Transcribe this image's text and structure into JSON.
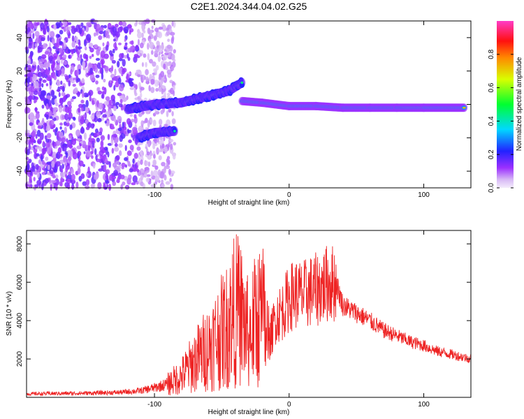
{
  "title": "C2E1.2024.344.04.02.G25",
  "chart_data": [
    {
      "type": "heatmap",
      "xlabel": "Height of straight line (km)",
      "ylabel": "Frequency (Hz)",
      "xlim": [
        -195,
        135
      ],
      "ylim": [
        -50,
        50
      ],
      "x_ticks": [
        -100,
        0,
        100
      ],
      "y_ticks": [
        -40,
        -20,
        0,
        20,
        40
      ],
      "colorbar": {
        "label": "Normalized spectral amplitude",
        "range": [
          0,
          1
        ],
        "ticks": [
          "0.0",
          "0.2",
          "0.4",
          "0.6",
          "0.8"
        ],
        "colormap": "rainbow (purple → blue → cyan → green → yellow → red → magenta)"
      },
      "ridges": [
        {
          "name": "upper branch",
          "points": [
            [
              -120,
              -3
            ],
            [
              -100,
              0
            ],
            [
              -80,
              1
            ],
            [
              -60,
              5
            ],
            [
              -45,
              8
            ],
            [
              -35,
              13
            ]
          ]
        },
        {
          "name": "lower branch",
          "points": [
            [
              -112,
              -20
            ],
            [
              -100,
              -17
            ],
            [
              -85,
              -16
            ]
          ]
        },
        {
          "name": "main line",
          "points": [
            [
              -35,
              2
            ],
            [
              -20,
              1
            ],
            [
              0,
              -1
            ],
            [
              20,
              -1
            ],
            [
              40,
              -2
            ],
            [
              60,
              -2
            ],
            [
              80,
              -2
            ],
            [
              100,
              -2
            ],
            [
              130,
              -2
            ]
          ]
        }
      ]
    },
    {
      "type": "line",
      "xlabel": "Height of straight line (km)",
      "ylabel": "SNR (10 * v/v)",
      "xlim": [
        -195,
        135
      ],
      "ylim": [
        0,
        8700
      ],
      "x_ticks": [
        -100,
        0,
        100
      ],
      "y_ticks": [
        2000,
        4000,
        6000,
        8000
      ],
      "color": "#ee2222",
      "series": [
        {
          "x": [
            -195,
            -175,
            -150,
            -125,
            -110,
            -100,
            -90,
            -80,
            -70,
            -60,
            -50,
            -45,
            -40,
            -35,
            -30,
            -25,
            -20,
            -15,
            -10,
            -5,
            0,
            5,
            10,
            15,
            20,
            25,
            30,
            35,
            40,
            50,
            60,
            70,
            80,
            90,
            100,
            110,
            120,
            135
          ],
          "y": [
            180,
            200,
            220,
            260,
            350,
            500,
            700,
            1100,
            1900,
            2600,
            3400,
            3800,
            4600,
            4200,
            3200,
            4000,
            4400,
            2800,
            4200,
            4500,
            5200,
            5400,
            5300,
            5500,
            5600,
            5800,
            6000,
            5900,
            4800,
            4400,
            4000,
            3500,
            3200,
            2900,
            2700,
            2400,
            2250,
            2000
          ]
        }
      ]
    }
  ]
}
